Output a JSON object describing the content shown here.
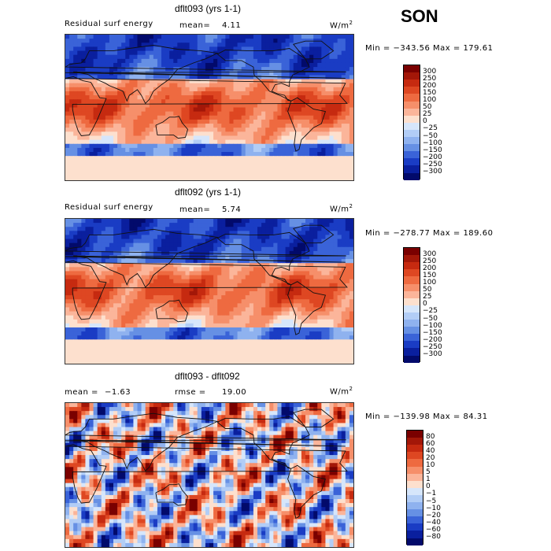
{
  "season": "SON",
  "panels": [
    {
      "title": "dflt093 (yrs 1-1)",
      "field": "Residual surf energy",
      "stat_label": "mean=",
      "stat_value": "4.11",
      "units": "W/m",
      "units_sup": "2",
      "minmax": "Min = −343.56  Max = 179.61",
      "colorbar": {
        "labels": [
          "300",
          "250",
          "200",
          "150",
          "100",
          "50",
          "25",
          "0",
          "−25",
          "−50",
          "−100",
          "−150",
          "−200",
          "−250",
          "−300"
        ],
        "colors": [
          "#7a0000",
          "#a31708",
          "#c62a10",
          "#de4722",
          "#ee6a40",
          "#f68f6a",
          "#fbb59a",
          "#fde0ce",
          "#d6e6fb",
          "#b2cdf6",
          "#8fb2ef",
          "#6690e4",
          "#3a63d8",
          "#1a3cc4",
          "#0a1f9e",
          "#020a6b"
        ]
      }
    },
    {
      "title": "dflt092 (yrs 1-1)",
      "field": "Residual surf energy",
      "stat_label": "mean=",
      "stat_value": "5.74",
      "units": "W/m",
      "units_sup": "2",
      "minmax": "Min = −278.77  Max = 189.60",
      "colorbar": {
        "labels": [
          "300",
          "250",
          "200",
          "150",
          "100",
          "50",
          "25",
          "0",
          "−25",
          "−50",
          "−100",
          "−150",
          "−200",
          "−250",
          "−300"
        ],
        "colors": [
          "#7a0000",
          "#a31708",
          "#c62a10",
          "#de4722",
          "#ee6a40",
          "#f68f6a",
          "#fbb59a",
          "#fde0ce",
          "#d6e6fb",
          "#b2cdf6",
          "#8fb2ef",
          "#6690e4",
          "#3a63d8",
          "#1a3cc4",
          "#0a1f9e",
          "#020a6b"
        ]
      }
    },
    {
      "title": "dflt093 - dflt092",
      "field": "mean =",
      "stat_label": "rmse =",
      "stat_value": "19.00",
      "field_value": "−1.63",
      "units": "W/m",
      "units_sup": "2",
      "minmax": "Min = −139.98  Max =  84.31",
      "colorbar": {
        "labels": [
          "80",
          "60",
          "40",
          "20",
          "10",
          "5",
          "1",
          "0",
          "−1",
          "−5",
          "−10",
          "−20",
          "−40",
          "−60",
          "−80"
        ],
        "colors": [
          "#7a0000",
          "#a31708",
          "#c62a10",
          "#de4722",
          "#ee6a40",
          "#f68f6a",
          "#fbb59a",
          "#fde0ce",
          "#d6e6fb",
          "#b2cdf6",
          "#8fb2ef",
          "#6690e4",
          "#3a63d8",
          "#1a3cc4",
          "#0a1f9e",
          "#020a6b"
        ]
      }
    }
  ],
  "chart_data": {
    "type": "heatmap",
    "title": "SON",
    "description_units": "W/m^2",
    "maps": [
      {
        "name": "dflt093 (yrs 1-1)",
        "variable": "Residual surf energy",
        "mean": 4.11,
        "min": -343.56,
        "max": 179.61,
        "levels": [
          -300,
          -250,
          -200,
          -150,
          -100,
          -50,
          -25,
          0,
          25,
          50,
          100,
          150,
          200,
          250,
          300
        ]
      },
      {
        "name": "dflt092 (yrs 1-1)",
        "variable": "Residual surf energy",
        "mean": 5.74,
        "min": -278.77,
        "max": 189.6,
        "levels": [
          -300,
          -250,
          -200,
          -150,
          -100,
          -50,
          -25,
          0,
          25,
          50,
          100,
          150,
          200,
          250,
          300
        ]
      },
      {
        "name": "dflt093 - dflt092",
        "mean": -1.63,
        "rmse": 19.0,
        "min": -139.98,
        "max": 84.31,
        "levels": [
          -80,
          -60,
          -40,
          -20,
          -10,
          -5,
          -1,
          0,
          1,
          5,
          10,
          20,
          40,
          60,
          80
        ]
      }
    ]
  }
}
